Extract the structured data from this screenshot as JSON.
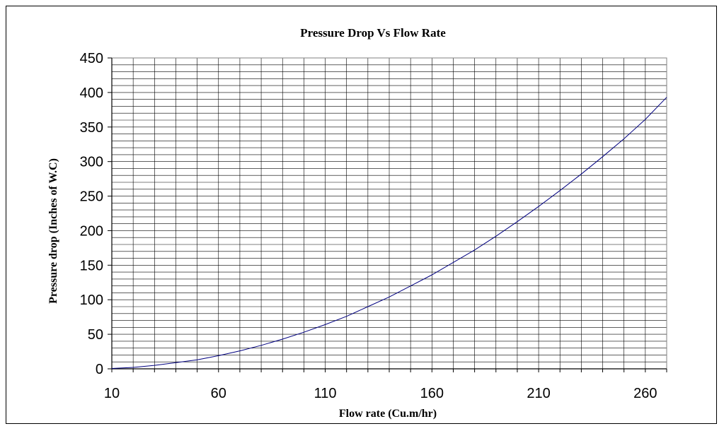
{
  "chart_data": {
    "type": "line",
    "title": "Pressure Drop Vs Flow Rate",
    "xlabel": "Flow rate (Cu.m/hr)",
    "ylabel": "Pressure drop (Inches of W.C)",
    "xlim": [
      10,
      270
    ],
    "ylim": [
      0,
      450
    ],
    "x_ticks": [
      10,
      60,
      110,
      160,
      210,
      260
    ],
    "y_ticks": [
      0,
      50,
      100,
      150,
      200,
      250,
      300,
      350,
      400,
      450
    ],
    "x_tick_labels": [
      "10",
      "60",
      "110",
      "160",
      "210",
      "260"
    ],
    "y_tick_labels": [
      "0",
      "50",
      "100",
      "150",
      "200",
      "250",
      "300",
      "350",
      "400",
      "450"
    ],
    "x_minor_step": 10,
    "y_minor_step": 10,
    "grid": true,
    "legend": "none",
    "series": [
      {
        "color": "#000080",
        "x": [
          10,
          20,
          30,
          40,
          50,
          60,
          70,
          80,
          90,
          100,
          110,
          120,
          130,
          140,
          150,
          160,
          170,
          180,
          190,
          200,
          210,
          220,
          230,
          240,
          250,
          260,
          270
        ],
        "y": [
          0.5,
          2,
          5,
          9,
          13,
          19,
          26,
          34,
          43,
          53,
          64,
          76,
          90,
          104,
          120,
          136,
          154,
          172,
          192,
          213,
          235,
          258,
          282,
          307,
          333,
          361,
          393
        ]
      }
    ]
  }
}
